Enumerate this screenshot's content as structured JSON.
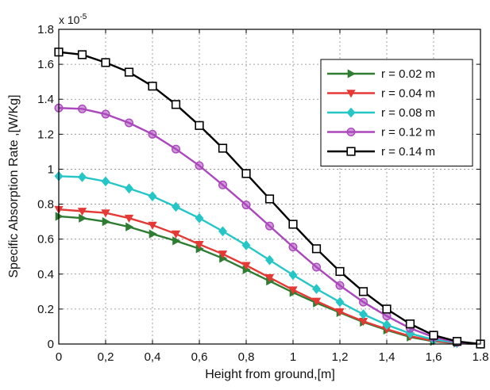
{
  "chart_data": {
    "type": "line",
    "title": "",
    "xlabel": "Height from ground,[m]",
    "ylabel": "Specific Absorption Rate  ,[W/Kg]",
    "y_multiplier": "x 10",
    "y_multiplier_exp": "-5",
    "xlim": [
      0,
      1.8
    ],
    "ylim": [
      0,
      1.8
    ],
    "x_ticks": [
      0,
      0.2,
      0.4,
      0.6,
      0.8,
      1,
      1.2,
      1.4,
      1.6,
      1.8
    ],
    "x_tick_labels": [
      "0",
      "0,2",
      "0,4",
      "0,6",
      "0,8",
      "1",
      "1,2",
      "1,4",
      "1,6",
      "1.8"
    ],
    "y_ticks": [
      0,
      0.2,
      0.4,
      0.6,
      0.8,
      1,
      1.2,
      1.4,
      1.6,
      1.8
    ],
    "y_tick_labels": [
      "0",
      "0.2",
      "0.4",
      "0.6",
      "0.8",
      "1",
      "1.2",
      "1.4",
      "1.6",
      "1.8"
    ],
    "grid": true,
    "legend_position": "top-right",
    "x": [
      0,
      0.1,
      0.2,
      0.3,
      0.4,
      0.5,
      0.6,
      0.7,
      0.8,
      0.9,
      1.0,
      1.1,
      1.2,
      1.3,
      1.4,
      1.5,
      1.6,
      1.7,
      1.8
    ],
    "series": [
      {
        "name": "r = 0.02 m",
        "color": "#2e7d32",
        "marker": "triangle-right",
        "values": [
          0.73,
          0.72,
          0.7,
          0.67,
          0.63,
          0.59,
          0.545,
          0.49,
          0.425,
          0.36,
          0.295,
          0.235,
          0.18,
          0.125,
          0.08,
          0.04,
          0.015,
          0.005,
          0.0
        ]
      },
      {
        "name": "r = 0.04 m",
        "color": "#e53935",
        "marker": "triangle-down",
        "values": [
          0.77,
          0.76,
          0.75,
          0.72,
          0.68,
          0.63,
          0.57,
          0.515,
          0.45,
          0.38,
          0.31,
          0.245,
          0.185,
          0.13,
          0.085,
          0.045,
          0.018,
          0.005,
          0.0
        ]
      },
      {
        "name": "r = 0.08 m",
        "color": "#26c6c6",
        "marker": "diamond",
        "values": [
          0.96,
          0.955,
          0.93,
          0.89,
          0.845,
          0.785,
          0.72,
          0.645,
          0.565,
          0.48,
          0.395,
          0.315,
          0.24,
          0.17,
          0.11,
          0.06,
          0.025,
          0.007,
          0.0
        ]
      },
      {
        "name": "r = 0.12 m",
        "color": "#ab47bc",
        "marker": "circle",
        "values": [
          1.35,
          1.345,
          1.315,
          1.265,
          1.2,
          1.115,
          1.02,
          0.91,
          0.795,
          0.675,
          0.555,
          0.44,
          0.335,
          0.24,
          0.16,
          0.09,
          0.04,
          0.01,
          0.0
        ]
      },
      {
        "name": "r = 0.14 m",
        "color": "#000000",
        "marker": "square",
        "values": [
          1.67,
          1.655,
          1.61,
          1.555,
          1.475,
          1.37,
          1.25,
          1.12,
          0.975,
          0.83,
          0.685,
          0.545,
          0.415,
          0.3,
          0.2,
          0.115,
          0.05,
          0.015,
          0.0
        ]
      }
    ]
  }
}
